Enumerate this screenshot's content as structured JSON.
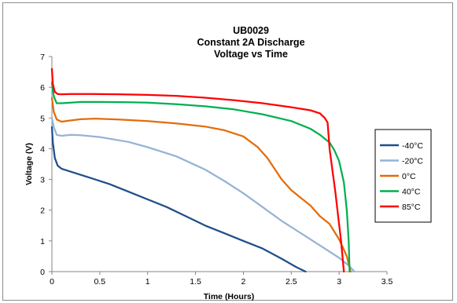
{
  "chart_data": {
    "type": "line",
    "title": [
      "UB0029",
      "Constant 2A Discharge",
      "Voltage vs Time"
    ],
    "xlabel": "Time (Hours)",
    "ylabel": "Voltage (V)",
    "xlim": [
      0,
      3.5
    ],
    "ylim": [
      0,
      7
    ],
    "xticks": [
      "0",
      "0.5",
      "1",
      "1.5",
      "2",
      "2.5",
      "3",
      "3.5"
    ],
    "yticks": [
      "0",
      "1",
      "2",
      "3",
      "4",
      "5",
      "6",
      "7"
    ],
    "grid": false,
    "legend_position": "right",
    "series": [
      {
        "name": "-40°C",
        "color": "#1f4e8c",
        "x": [
          0,
          0.01,
          0.03,
          0.06,
          0.1,
          0.2,
          0.4,
          0.6,
          0.8,
          1.0,
          1.2,
          1.4,
          1.6,
          1.8,
          2.0,
          2.2,
          2.4,
          2.55,
          2.65
        ],
        "y": [
          4.7,
          4.2,
          3.7,
          3.45,
          3.35,
          3.25,
          3.05,
          2.85,
          2.6,
          2.35,
          2.1,
          1.8,
          1.5,
          1.25,
          1.0,
          0.75,
          0.42,
          0.15,
          0
        ]
      },
      {
        "name": "-20°C",
        "color": "#95b3d7",
        "x": [
          0,
          0.02,
          0.05,
          0.1,
          0.2,
          0.3,
          0.5,
          0.8,
          1.0,
          1.3,
          1.6,
          1.8,
          2.0,
          2.2,
          2.4,
          2.6,
          2.8,
          3.0,
          3.1,
          3.16
        ],
        "y": [
          5.0,
          4.7,
          4.45,
          4.42,
          4.45,
          4.44,
          4.38,
          4.22,
          4.05,
          3.75,
          3.32,
          2.95,
          2.55,
          2.1,
          1.65,
          1.25,
          0.85,
          0.45,
          0.2,
          0
        ]
      },
      {
        "name": "0°C",
        "color": "#e46c0a",
        "x": [
          0,
          0.02,
          0.05,
          0.1,
          0.2,
          0.3,
          0.45,
          0.7,
          1.0,
          1.3,
          1.6,
          1.8,
          2.0,
          2.15,
          2.25,
          2.4,
          2.5,
          2.6,
          2.7,
          2.8,
          2.9,
          3.0,
          3.08,
          3.12
        ],
        "y": [
          5.65,
          5.2,
          4.95,
          4.88,
          4.92,
          4.96,
          4.98,
          4.95,
          4.9,
          4.82,
          4.72,
          4.6,
          4.4,
          4.05,
          3.7,
          3.0,
          2.65,
          2.4,
          2.15,
          1.8,
          1.55,
          1.05,
          0.5,
          0
        ]
      },
      {
        "name": "40°C",
        "color": "#00b050",
        "x": [
          0,
          0.02,
          0.05,
          0.1,
          0.2,
          0.3,
          0.5,
          0.8,
          1.0,
          1.3,
          1.6,
          1.9,
          2.2,
          2.5,
          2.7,
          2.8,
          2.9,
          2.95,
          3.0,
          3.05,
          3.08,
          3.1,
          3.11
        ],
        "y": [
          6.15,
          5.7,
          5.48,
          5.48,
          5.5,
          5.52,
          5.52,
          5.51,
          5.5,
          5.45,
          5.38,
          5.28,
          5.12,
          4.9,
          4.65,
          4.45,
          4.2,
          3.95,
          3.6,
          2.9,
          2.0,
          1.0,
          0
        ]
      },
      {
        "name": "85°C",
        "color": "#ff0000",
        "x": [
          0,
          0.01,
          0.03,
          0.06,
          0.1,
          0.2,
          0.4,
          0.7,
          1.0,
          1.3,
          1.6,
          1.9,
          2.2,
          2.5,
          2.7,
          2.8,
          2.85,
          2.88,
          2.9,
          2.93,
          2.96,
          2.99,
          3.02,
          3.05
        ],
        "y": [
          6.6,
          6.1,
          5.85,
          5.78,
          5.77,
          5.78,
          5.78,
          5.77,
          5.75,
          5.72,
          5.66,
          5.58,
          5.48,
          5.35,
          5.25,
          5.15,
          5.0,
          4.85,
          4.0,
          3.3,
          2.6,
          1.8,
          1.0,
          0
        ]
      }
    ]
  }
}
